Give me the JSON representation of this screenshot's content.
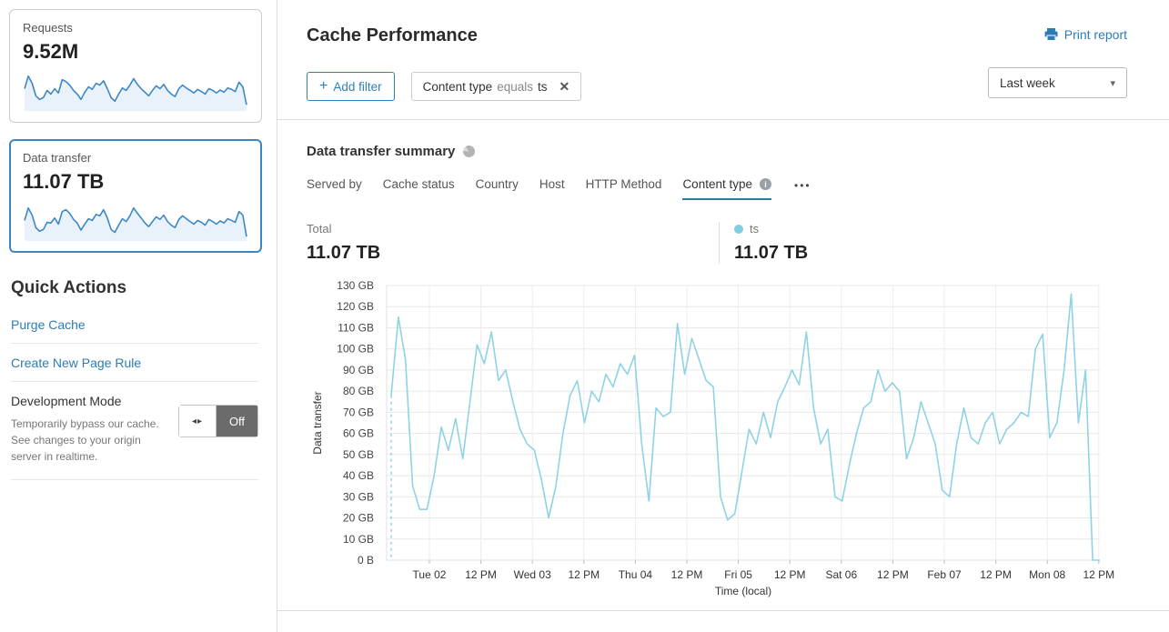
{
  "colors": {
    "sparkline_blue": "#3b87c6",
    "sparkline_fill": "#e9f2fa",
    "selected_card_border": "#3b87c6",
    "link_blue": "#2c7cb8",
    "accent_blue": "#2f80b9",
    "chart_line": "#8ed3e4",
    "tab_underline": "#2d7f96",
    "legend_dot": "#7fcfe0",
    "toggle_off_bg": "#6b6b6b"
  },
  "icons": {
    "plus": "+",
    "close": "✕",
    "caret_down": "▾",
    "info": "i",
    "more_options": "•••",
    "toggle_arrows": "◂▸"
  },
  "sidebar": {
    "cards": [
      {
        "label": "Requests",
        "value": "9.52M",
        "selected": false,
        "sparkline": [
          60,
          95,
          75,
          40,
          30,
          35,
          55,
          45,
          60,
          48,
          85,
          80,
          70,
          55,
          45,
          30,
          50,
          65,
          58,
          75,
          70,
          82,
          60,
          35,
          25,
          45,
          62,
          55,
          70,
          88,
          72,
          60,
          50,
          40,
          55,
          68,
          60,
          72,
          55,
          45,
          38,
          60,
          70,
          62,
          55,
          48,
          58,
          52,
          45,
          60,
          55,
          48,
          56,
          50,
          62,
          58,
          52,
          78,
          65,
          15
        ]
      },
      {
        "label": "Data transfer",
        "value": "11.07 TB",
        "selected": true,
        "sparkline": [
          55,
          90,
          70,
          35,
          25,
          30,
          50,
          48,
          62,
          45,
          80,
          85,
          75,
          58,
          48,
          28,
          45,
          60,
          55,
          72,
          68,
          85,
          62,
          30,
          22,
          42,
          60,
          52,
          68,
          90,
          75,
          62,
          48,
          38,
          52,
          65,
          58,
          70,
          52,
          42,
          35,
          58,
          68,
          60,
          52,
          45,
          55,
          50,
          42,
          58,
          52,
          45,
          54,
          48,
          60,
          55,
          50,
          80,
          70,
          10
        ]
      }
    ],
    "quick_actions": {
      "title": "Quick Actions",
      "links": [
        "Purge Cache",
        "Create New Page Rule"
      ],
      "dev_mode": {
        "title": "Development Mode",
        "description": "Temporarily bypass our cache. See changes to your origin server in realtime.",
        "toggle_label": "Off"
      }
    }
  },
  "header": {
    "title": "Cache Performance",
    "print_label": "Print report"
  },
  "filters": {
    "add_label": "Add filter",
    "chip": {
      "field": "Content type",
      "operator": "equals",
      "value": "ts"
    },
    "range_selected": "Last week"
  },
  "summary": {
    "title": "Data transfer summary",
    "tabs": [
      {
        "label": "Served by",
        "active": false
      },
      {
        "label": "Cache status",
        "active": false
      },
      {
        "label": "Country",
        "active": false
      },
      {
        "label": "Host",
        "active": false
      },
      {
        "label": "HTTP Method",
        "active": false
      },
      {
        "label": "Content type",
        "active": true
      }
    ],
    "total": {
      "label": "Total",
      "value": "11.07 TB"
    },
    "legend": {
      "series": "ts",
      "value": "11.07 TB"
    }
  },
  "chart_data": {
    "type": "line",
    "title": "Data transfer summary",
    "ylabel": "Data transfer",
    "xlabel": "Time (local)",
    "unit": "GB",
    "ylim": [
      0,
      130
    ],
    "ytick_step": 10,
    "ytick_labels": [
      "0 B",
      "10 GB",
      "20 GB",
      "30 GB",
      "40 GB",
      "50 GB",
      "60 GB",
      "70 GB",
      "80 GB",
      "90 GB",
      "100 GB",
      "110 GB",
      "120 GB",
      "130 GB"
    ],
    "x_ticks": [
      "Tue 02",
      "12 PM",
      "Wed 03",
      "12 PM",
      "Thu 04",
      "12 PM",
      "Fri 05",
      "12 PM",
      "Sat 06",
      "12 PM",
      "Feb 07",
      "12 PM",
      "Mon 08",
      "12 PM"
    ],
    "grid": true,
    "legend_position": "top-right",
    "start_boundary_dashed": true,
    "series": [
      {
        "name": "ts",
        "values": [
          78,
          115,
          95,
          35,
          24,
          24,
          40,
          63,
          52,
          67,
          48,
          75,
          102,
          93,
          108,
          85,
          90,
          75,
          62,
          55,
          52,
          38,
          20,
          35,
          60,
          78,
          85,
          65,
          80,
          75,
          88,
          82,
          93,
          88,
          97,
          55,
          28,
          72,
          68,
          70,
          112,
          88,
          105,
          95,
          85,
          82,
          30,
          19,
          22,
          42,
          62,
          55,
          70,
          58,
          75,
          82,
          90,
          83,
          108,
          72,
          55,
          62,
          30,
          28,
          45,
          60,
          72,
          75,
          90,
          80,
          84,
          80,
          48,
          58,
          75,
          65,
          55,
          33,
          30,
          55,
          72,
          58,
          55,
          65,
          70,
          55,
          62,
          65,
          70,
          68,
          100,
          107,
          58,
          65,
          90,
          126,
          65,
          90,
          0,
          0
        ]
      }
    ]
  }
}
